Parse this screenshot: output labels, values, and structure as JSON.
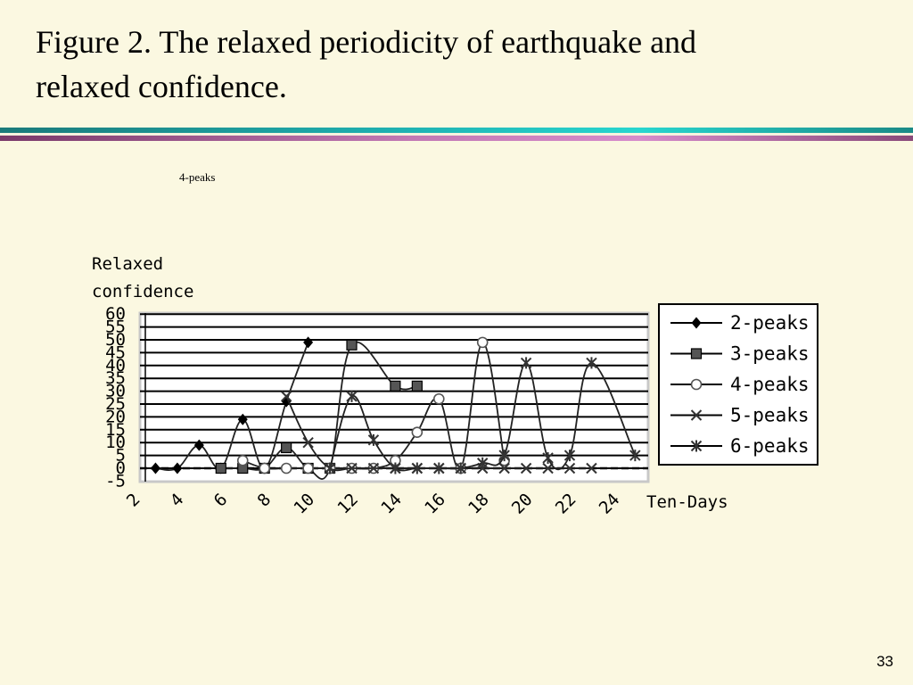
{
  "slide": {
    "title_line1": "Figure 2. The relaxed periodicity of earthquake and",
    "title_line2": "relaxed confidence.",
    "stray_label": "4-peaks",
    "page_number": "33"
  },
  "chart_data": {
    "type": "line",
    "title": "",
    "ylabel_line1": "Relaxed",
    "ylabel_line2": "confidence",
    "xlabel": "Ten-Days",
    "xlim": [
      2,
      25
    ],
    "ylim": [
      -5,
      60
    ],
    "x_ticks": [
      2,
      4,
      6,
      8,
      10,
      12,
      14,
      16,
      18,
      20,
      22,
      24
    ],
    "y_ticks": [
      -5,
      0,
      5,
      10,
      15,
      20,
      25,
      30,
      35,
      40,
      45,
      50,
      55,
      60
    ],
    "grid": "horizontal",
    "legend_position": "right",
    "colors": {
      "plot_bg": "#ffffff",
      "line": "#000000",
      "marker_gray": "#555555",
      "legend_bg": "#ffffff"
    },
    "series": [
      {
        "name": "2-peaks",
        "marker": "diamond",
        "points": [
          [
            3,
            0
          ],
          [
            4,
            0
          ],
          [
            5,
            9
          ],
          [
            6,
            0
          ],
          [
            7,
            19
          ],
          [
            8,
            0
          ],
          [
            9,
            26
          ],
          [
            10,
            49
          ]
        ]
      },
      {
        "name": "3-peaks",
        "marker": "square",
        "points": [
          [
            6,
            0
          ],
          [
            7,
            0
          ],
          [
            8,
            0
          ],
          [
            9,
            8
          ],
          [
            10,
            0
          ],
          [
            11,
            0
          ],
          [
            12,
            48
          ],
          [
            14,
            32
          ],
          [
            15,
            32
          ]
        ]
      },
      {
        "name": "4-peaks",
        "marker": "circle",
        "points": [
          [
            7,
            3
          ],
          [
            8,
            0
          ],
          [
            9,
            0
          ],
          [
            10,
            0
          ],
          [
            11,
            0
          ],
          [
            12,
            0
          ],
          [
            13,
            0
          ],
          [
            14,
            3
          ],
          [
            15,
            14
          ],
          [
            16,
            27
          ],
          [
            17,
            0
          ],
          [
            18,
            49
          ],
          [
            19,
            3
          ]
        ]
      },
      {
        "name": "5-peaks",
        "marker": "x",
        "points": [
          [
            9,
            28
          ],
          [
            10,
            10
          ],
          [
            11,
            0
          ],
          [
            12,
            0
          ],
          [
            13,
            0
          ],
          [
            14,
            0
          ],
          [
            15,
            0
          ],
          [
            16,
            0
          ],
          [
            17,
            0
          ],
          [
            18,
            0
          ],
          [
            19,
            0
          ],
          [
            20,
            0
          ],
          [
            21,
            0
          ],
          [
            22,
            0
          ],
          [
            23,
            0
          ]
        ]
      },
      {
        "name": "6-peaks",
        "marker": "asterisk",
        "points": [
          [
            11,
            0
          ],
          [
            12,
            28
          ],
          [
            13,
            11
          ],
          [
            14,
            0
          ],
          [
            15,
            0
          ],
          [
            16,
            0
          ],
          [
            17,
            0
          ],
          [
            18,
            2
          ],
          [
            19,
            5
          ],
          [
            20,
            41
          ],
          [
            21,
            4
          ],
          [
            22,
            5
          ],
          [
            23,
            41
          ],
          [
            25,
            5
          ]
        ]
      }
    ]
  }
}
